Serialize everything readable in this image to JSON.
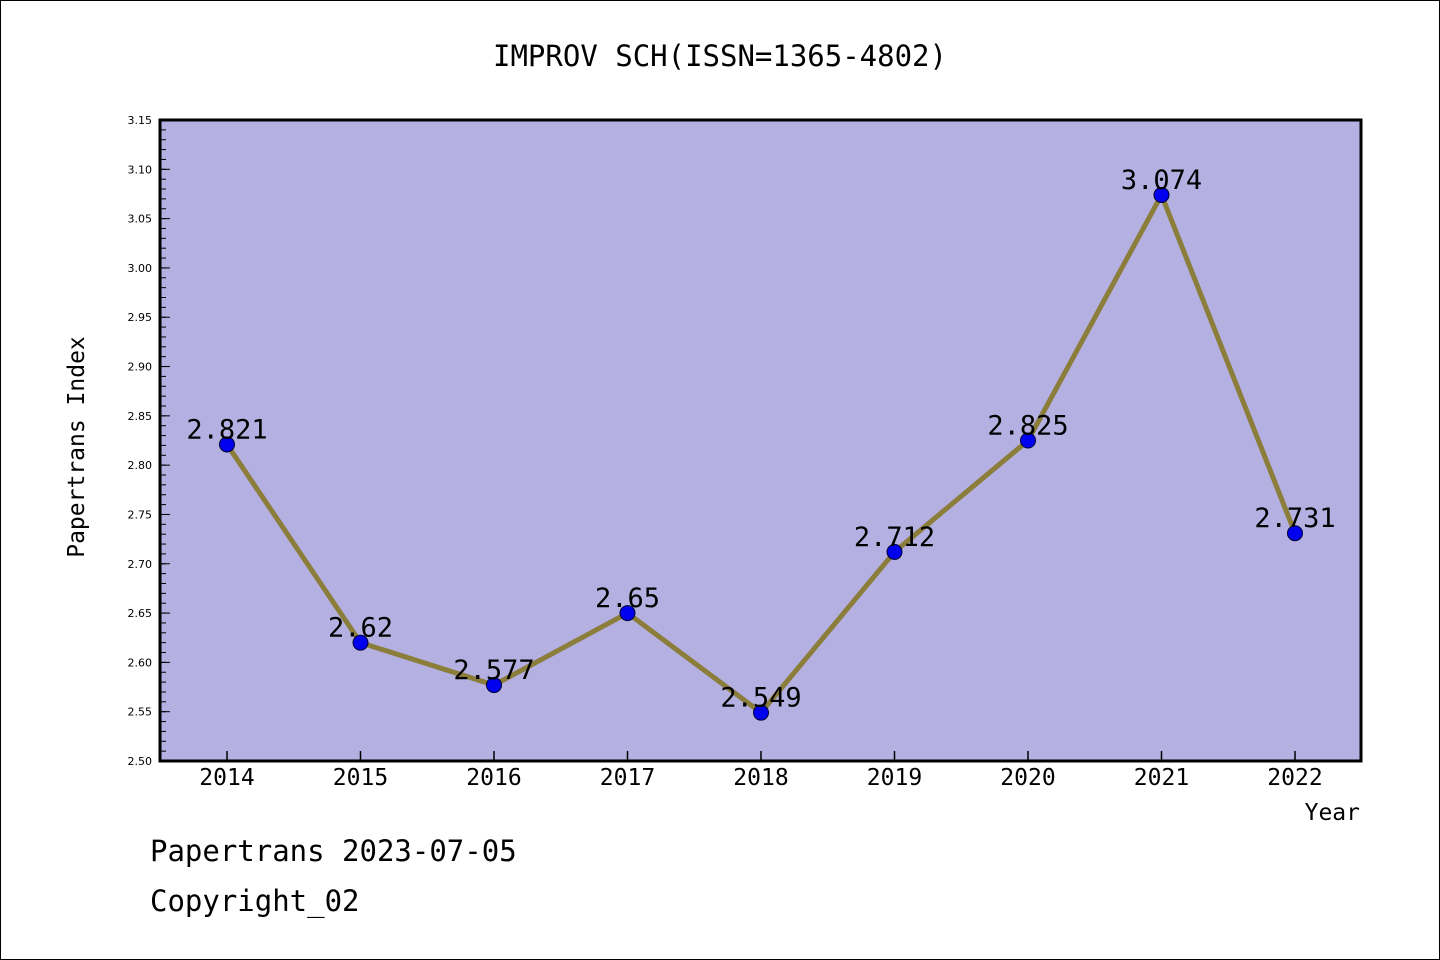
{
  "chart_data": {
    "type": "line",
    "title": "IMPROV SCH(ISSN=1365-4802)",
    "xlabel": "Year",
    "ylabel": "Papertrans Index",
    "categories": [
      "2014",
      "2015",
      "2016",
      "2017",
      "2018",
      "2019",
      "2020",
      "2021",
      "2022"
    ],
    "series": [
      {
        "values": [
          2.821,
          2.62,
          2.577,
          2.65,
          2.549,
          2.712,
          2.825,
          3.074,
          2.731
        ],
        "labels": [
          "2.821",
          "2.62",
          "2.577",
          "2.65",
          "2.549",
          "2.712",
          "2.825",
          "3.074",
          "2.731"
        ]
      }
    ],
    "ylim": [
      2.5,
      3.15
    ],
    "yticks": [
      "2.50",
      "2.55",
      "2.60",
      "2.65",
      "2.70",
      "2.75",
      "2.80",
      "2.85",
      "2.90",
      "2.95",
      "3.00",
      "3.05",
      "3.10",
      "3.15"
    ],
    "grid": false,
    "colors": {
      "plot_background": "#b5b0e2",
      "line": "#8b7d3a",
      "marker": "#0000ee"
    }
  },
  "footer": {
    "line1": "Papertrans 2023-07-05",
    "line2": "Copyright_02"
  }
}
